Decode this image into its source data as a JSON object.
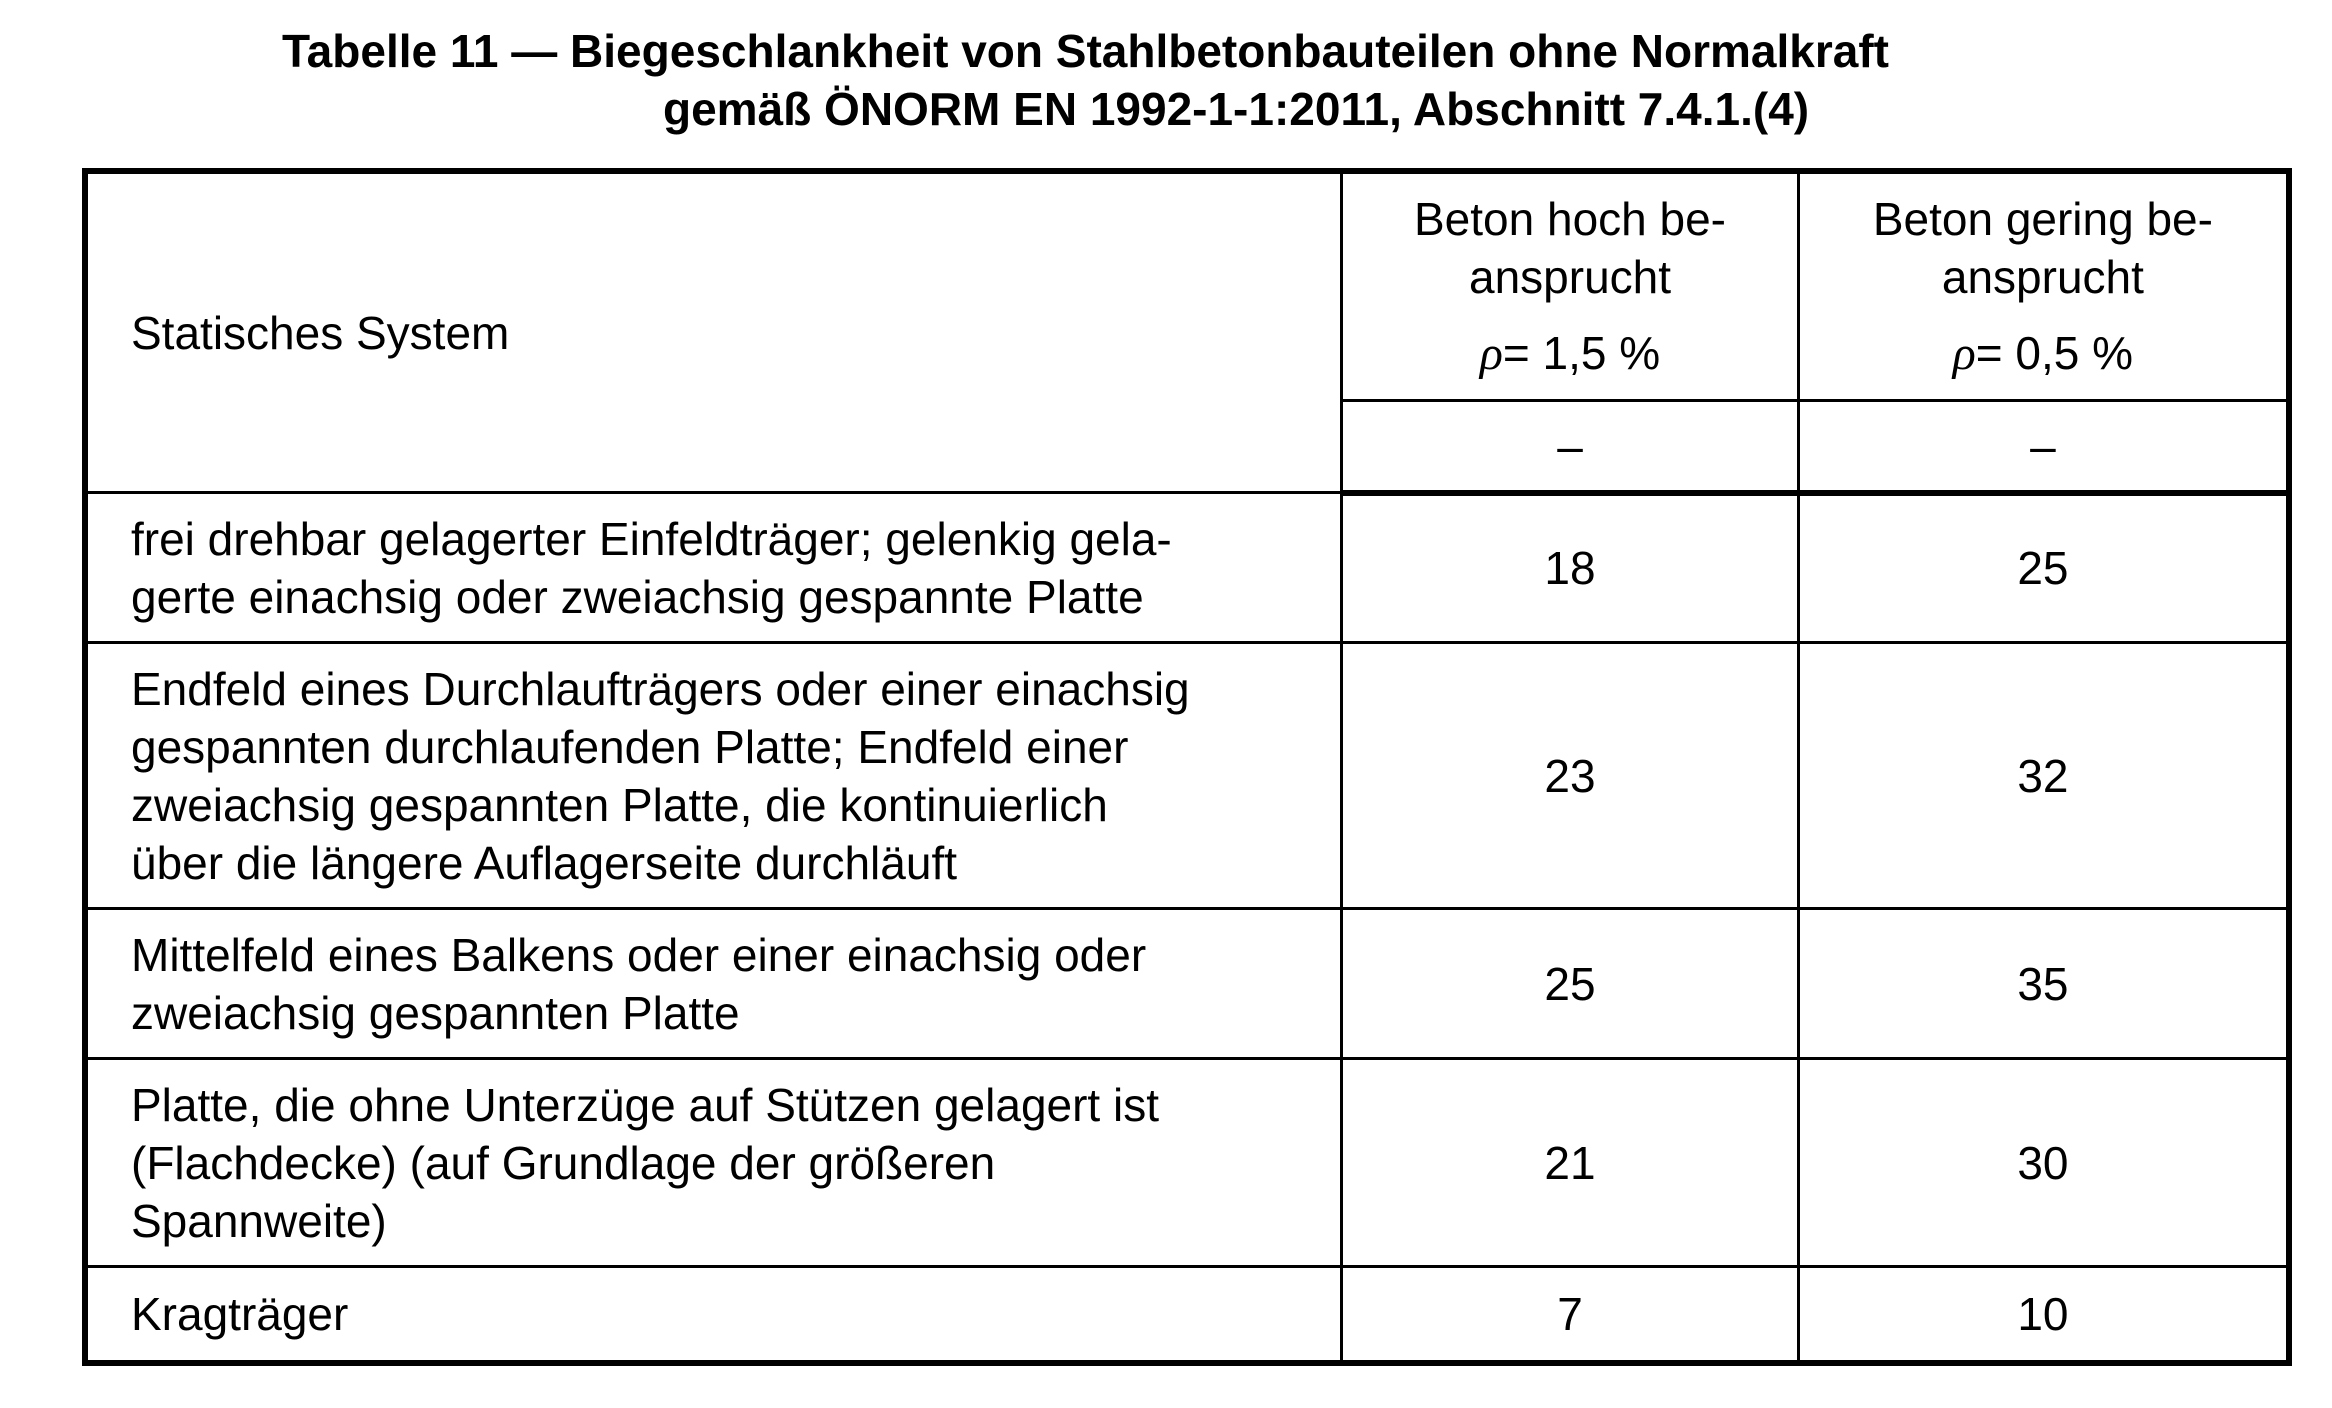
{
  "title": {
    "line1": "Tabelle 11 —  Biegeschlankheit von Stahlbetonbauteilen ohne Normalkraft",
    "line2": "gemäß ÖNORM EN 1992-1-1:2011, Abschnitt 7.4.1.(4)"
  },
  "header": {
    "system_label": "Statisches System",
    "col_high": {
      "line1": "Beton hoch be-",
      "line2": "ansprucht",
      "rho_symbol": "ρ",
      "rho_value": "= 1,5 %",
      "unit": "–"
    },
    "col_low": {
      "line1": "Beton gering be-",
      "line2": "ansprucht",
      "rho_symbol": "ρ",
      "rho_value": "= 0,5 %",
      "unit": "–"
    }
  },
  "rows": [
    {
      "system": [
        "frei drehbar gelagerter Einfeldträger; gelenkig gela-",
        "gerte einachsig oder zweiachsig gespannte Platte"
      ],
      "high": "18",
      "low": "25"
    },
    {
      "system": [
        "Endfeld eines Durchlaufträgers oder einer einachsig",
        "gespannten durchlaufenden Platte; Endfeld einer",
        "zweiachsig gespannten Platte, die kontinuierlich",
        "über die längere Auflagerseite durchläuft"
      ],
      "high": "23",
      "low": "32"
    },
    {
      "system": [
        "Mittelfeld eines Balkens oder einer einachsig oder",
        "zweiachsig gespannten Platte"
      ],
      "high": "25",
      "low": "35"
    },
    {
      "system": [
        "Platte, die ohne Unterzüge auf Stützen gelagert ist",
        "(Flachdecke) (auf Grundlage der größeren",
        "Spannweite)"
      ],
      "high": "21",
      "low": "30"
    },
    {
      "system": [
        "Kragträger"
      ],
      "high": "7",
      "low": "10"
    }
  ]
}
